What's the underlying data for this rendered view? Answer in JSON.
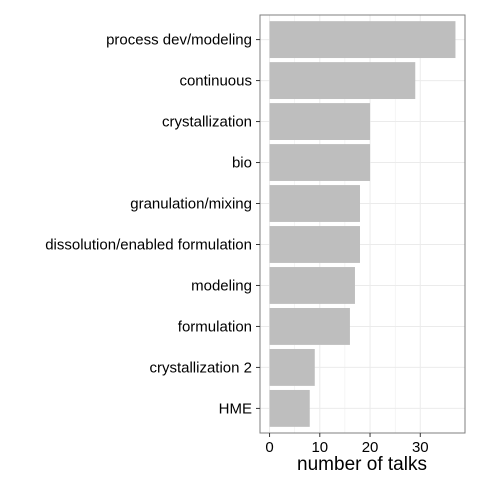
{
  "chart_data": {
    "type": "bar",
    "orientation": "horizontal",
    "categories": [
      "process dev/modeling",
      "continuous",
      "crystallization",
      "bio",
      "granulation/mixing",
      "dissolution/enabled formulation",
      "modeling",
      "formulation",
      "crystallization 2",
      "HME"
    ],
    "values": [
      37,
      29,
      20,
      20,
      18,
      18,
      17,
      16,
      9,
      8
    ],
    "xlabel": "number of talks",
    "ylabel": "",
    "xlim": [
      -1.9,
      38.9
    ],
    "xticks": [
      0,
      10,
      20,
      30
    ],
    "grid": true,
    "bar_color": "#bebebe",
    "grid_color": "#ebebeb",
    "panel_border_color": "#7f7f7f"
  }
}
